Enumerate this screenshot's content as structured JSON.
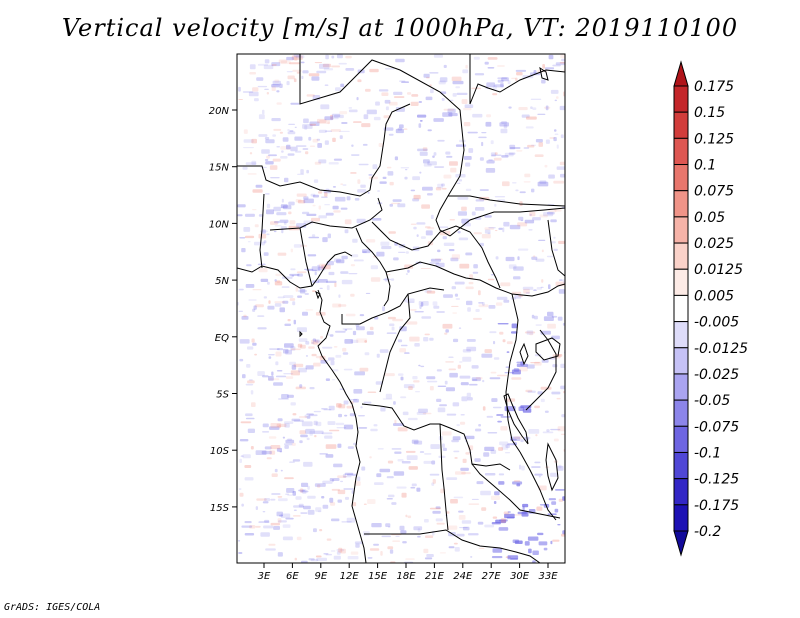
{
  "title": "Vertical velocity [m/s] at 1000hPa, VT: 2019110100",
  "footer": "GrADS: IGES/COLA",
  "map": {
    "lat_labels": [
      "20N",
      "15N",
      "10N",
      "5N",
      "EQ",
      "5S",
      "10S",
      "15S"
    ],
    "lon_labels": [
      "3E",
      "6E",
      "9E",
      "12E",
      "15E",
      "18E",
      "21E",
      "24E",
      "27E",
      "30E",
      "33E"
    ]
  },
  "colorbar": {
    "labels": [
      "0.175",
      "0.15",
      "0.125",
      "0.1",
      "0.075",
      "0.05",
      "0.025",
      "0.0125",
      "0.005",
      "-0.005",
      "-0.0125",
      "-0.025",
      "-0.05",
      "-0.075",
      "-0.1",
      "-0.125",
      "-0.175",
      "-0.2"
    ],
    "colors": [
      "#b0141a",
      "#c4262a",
      "#d23d3b",
      "#de5752",
      "#e8766c",
      "#f09488",
      "#f6b3a8",
      "#fad2c9",
      "#fdebe6",
      "#ffffff",
      "#dedcf9",
      "#c6c2f6",
      "#aaa4f1",
      "#8c85ea",
      "#6e65e2",
      "#5047d6",
      "#3327c6",
      "#1d11b4",
      "#120a9a"
    ]
  },
  "colors": {
    "positive": "#f08a7e",
    "negative": "#6c66e6"
  }
}
